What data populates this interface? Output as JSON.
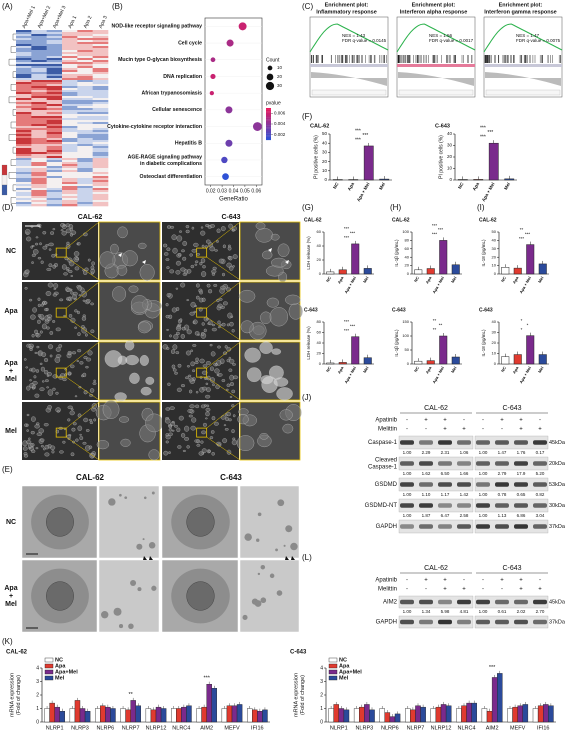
{
  "panels": {
    "bar_colors": [
      "#ffffff",
      "#e03a2f",
      "#7a2a8c",
      "#2b4a9b"
    ],
    "A": {
      "label": "(A)",
      "columns": [
        "Apa+Mel 1",
        "Apa+Mel 2",
        "Apa+Mel 3",
        "Apa 1",
        "Apa 2",
        "Apa 3"
      ]
    },
    "B": {
      "label": "(B)",
      "type": "dot",
      "categories": [
        "NOD-like receptor signaling pathway",
        "Cell cycle",
        "Mucin type O-glycan biosynthesis",
        "DNA replication",
        "African trypanosomiasis",
        "Cellular senescence",
        "Cytokine-cytokine receptor interaction",
        "Hepatitis B",
        "AGE-RAGE signaling pathway",
        "Osteoclast differentiation"
      ],
      "category_notes": [
        null,
        null,
        null,
        null,
        null,
        null,
        null,
        null,
        "in diabetic complications",
        null
      ],
      "values": [
        0.048,
        0.037,
        0.022,
        0.022,
        0.021,
        0.036,
        0.061,
        0.036,
        0.032,
        0.033
      ],
      "counts": [
        28,
        22,
        10,
        12,
        8,
        22,
        35,
        22,
        18,
        20
      ],
      "pvalues": [
        0.006,
        0.005,
        0.005,
        0.006,
        0.006,
        0.004,
        0.004,
        0.003,
        0.002,
        0.001
      ],
      "xlim": [
        0.015,
        0.065
      ],
      "xticks": [
        0.02,
        0.03,
        0.04,
        0.05,
        0.06
      ],
      "xlabel": "GeneRatio",
      "count_title": "Count",
      "count_ticks": [
        10,
        20,
        30
      ],
      "pvalue_title": "pvalue",
      "pvalue_ticks": [
        0.002,
        0.004,
        0.006
      ],
      "pvalue_lim": [
        0.001,
        0.007
      ],
      "pvalue_colors": [
        "#2f52d6",
        "#e8185c"
      ]
    },
    "C": {
      "label": "(C)",
      "plots": [
        {
          "title": [
            "Enrichment plot:",
            "Inflammatory response"
          ],
          "stats": [
            "NES = 1.43",
            "FDR q-value = 0.0145"
          ]
        },
        {
          "title": [
            "Enrichment plot:",
            "Interferon alpha response"
          ],
          "stats": [
            "NES = 1.56",
            "FDR q-value = 0.0017"
          ]
        },
        {
          "title": [
            "Enrichment plot:",
            "Interferon gamma response"
          ],
          "stats": [
            "NES = 1.47",
            "FDR q-value = 0.0075"
          ]
        }
      ]
    },
    "F": {
      "label": "(F)",
      "charts": [
        {
          "type": "bar",
          "title": "CAL-62",
          "ylabel": "PI positive cells (%)",
          "categories": [
            "NC",
            "Apa",
            "Apa + Mel",
            "Mel"
          ],
          "values": [
            0.5,
            0.5,
            37,
            1
          ],
          "ylim": [
            0,
            50
          ],
          "yticks": [
            0,
            10,
            20,
            30,
            40,
            50
          ],
          "annotations": [
            "***",
            "***",
            "***"
          ]
        },
        {
          "type": "bar",
          "title": "C-643",
          "ylabel": "PI positive cells (%)",
          "categories": [
            "NC",
            "Apa",
            "Apa + Mel",
            "Mel"
          ],
          "values": [
            0.5,
            0.5,
            32,
            1
          ],
          "ylim": [
            0,
            40
          ],
          "yticks": [
            0,
            10,
            20,
            30,
            40
          ],
          "annotations": [
            "***",
            "***",
            "***"
          ]
        }
      ]
    },
    "G": {
      "label": "(G)",
      "charts": [
        {
          "type": "bar",
          "title": "CAL-62",
          "ylabel": "LDH release (%)",
          "categories": [
            "NC",
            "Apa",
            "Apa + Mel",
            "Mel"
          ],
          "values": [
            3,
            6,
            43,
            8
          ],
          "ylim": [
            0,
            60
          ],
          "yticks": [
            0,
            20,
            40,
            60
          ],
          "annotations": [
            "***",
            "***",
            "***"
          ]
        },
        {
          "type": "bar",
          "title": "C-643",
          "ylabel": "LDH release (%)",
          "categories": [
            "NC",
            "Apa",
            "Apa + Mel",
            "Mel"
          ],
          "values": [
            2,
            3,
            52,
            12
          ],
          "ylim": [
            0,
            80
          ],
          "yticks": [
            0,
            20,
            40,
            60,
            80
          ],
          "annotations": [
            "***",
            "***",
            "***"
          ]
        }
      ]
    },
    "H": {
      "label": "(H)",
      "charts": [
        {
          "type": "bar",
          "title": "CAL-62",
          "ylabel": "IL-1β (pg/mL)",
          "categories": [
            "NC",
            "Apa",
            "Apa + Mel",
            "Mel"
          ],
          "values": [
            10,
            13,
            80,
            22
          ],
          "ylim": [
            0,
            100
          ],
          "yticks": [
            0,
            20,
            40,
            60,
            80,
            100
          ],
          "annotations": [
            "***",
            "***",
            "***"
          ]
        },
        {
          "type": "bar",
          "title": "C-643",
          "ylabel": "IL-1β (pg/mL)",
          "categories": [
            "NC",
            "Apa",
            "Apa + Mel",
            "Mel"
          ],
          "values": [
            10,
            12,
            100,
            25
          ],
          "ylim": [
            0,
            150
          ],
          "yticks": [
            0,
            50,
            100,
            150
          ],
          "annotations": [
            "**",
            "**",
            "**"
          ]
        }
      ]
    },
    "I": {
      "label": "(I)",
      "charts": [
        {
          "type": "bar",
          "title": "CAL-62",
          "ylabel": "IL-18 (pg/mL)",
          "categories": [
            "NC",
            "Apa",
            "Apa + Mel",
            "Mel"
          ],
          "values": [
            8,
            7,
            35,
            12
          ],
          "ylim": [
            0,
            50
          ],
          "yticks": [
            0,
            10,
            20,
            30,
            40,
            50
          ],
          "annotations": [
            "***",
            "***",
            "**"
          ]
        },
        {
          "type": "bar",
          "title": "C-643",
          "ylabel": "IL-18 (pg/mL)",
          "categories": [
            "NC",
            "Apa",
            "Apa + Mel",
            "Mel"
          ],
          "values": [
            7,
            9,
            27,
            9
          ],
          "ylim": [
            0,
            40
          ],
          "yticks": [
            0,
            10,
            20,
            30,
            40
          ],
          "annotations": [
            "*",
            "*",
            "*"
          ]
        }
      ]
    },
    "D": {
      "label": "(D)",
      "columns": [
        "CAL-62",
        "C-643"
      ],
      "rows": [
        [
          "NC"
        ],
        [
          "Apa"
        ],
        [
          "Apa",
          "+",
          "Mel"
        ],
        [
          "Mel"
        ]
      ]
    },
    "E": {
      "label": "(E)",
      "columns": [
        "CAL-62",
        "C-643"
      ],
      "rows": [
        [
          "NC"
        ],
        [
          "Apa",
          "+",
          "Mel"
        ]
      ]
    },
    "J": {
      "label": "(J)",
      "columns": [
        "CAL-62",
        "C-643"
      ],
      "treatments": [
        {
          "name": "Apatinib",
          "signs": [
            "-",
            "+",
            "+",
            "-",
            "-",
            "+",
            "+",
            "-"
          ]
        },
        {
          "name": "Melittin",
          "signs": [
            "-",
            "-",
            "+",
            "+",
            "-",
            "-",
            "+",
            "+"
          ]
        }
      ],
      "bands": [
        {
          "name": [
            "Caspase-1"
          ],
          "size": "45kDa",
          "quant": [
            "1.00",
            "2.29",
            "2.31",
            "1.06",
            "1.00",
            "1.47",
            "1.76",
            "0.17"
          ]
        },
        {
          "name": [
            "Cleaved",
            "Caspase-1"
          ],
          "size": "20kDa",
          "quant": [
            "1.00",
            "1.62",
            "6.50",
            "1.66",
            "1.00",
            "2.79",
            "17.9",
            "5.20"
          ]
        },
        {
          "name": [
            "GSDMD"
          ],
          "size": "53kDa",
          "quant": [
            "1.00",
            "1.10",
            "1.17",
            "1.42",
            "1.00",
            "0.78",
            "0.65",
            "0.82"
          ]
        },
        {
          "name": [
            "GSDMD-NT"
          ],
          "size": "30kDa",
          "quant": [
            "1.00",
            "1.87",
            "6.47",
            "2.58",
            "1.00",
            "1.13",
            "6.86",
            "3.04"
          ]
        },
        {
          "name": [
            "GAPDH"
          ],
          "size": "37kDa",
          "quant": null
        }
      ]
    },
    "L": {
      "label": "(L)",
      "columns": [
        "CAL-62",
        "C-643"
      ],
      "treatments": [
        {
          "name": "Apatinib",
          "signs": [
            "-",
            "+",
            "+",
            "-",
            "-",
            "+",
            "+",
            "-"
          ]
        },
        {
          "name": "Melittin",
          "signs": [
            "-",
            "-",
            "+",
            "+",
            "-",
            "-",
            "+",
            "+"
          ]
        }
      ],
      "bands": [
        {
          "name": [
            "AIM2"
          ],
          "size": "45kDa",
          "quant": [
            "1.00",
            "1.34",
            "5.98",
            "4.81",
            "1.00",
            "0.61",
            "2.02",
            "2.70"
          ]
        },
        {
          "name": [
            "GAPDH"
          ],
          "size": "37kDa",
          "quant": null
        }
      ]
    },
    "K": {
      "label": "(K)",
      "charts": [
        {
          "type": "grouped-bar",
          "title": "CAL-62",
          "ylabel": [
            "mRNA expression",
            "(Fold of change)"
          ],
          "categories": [
            "NLRP1",
            "NLRP3",
            "NLRP6",
            "NLRP7",
            "NLRP12",
            "NLRC4",
            "AIM2",
            "MEFV",
            "IFI16"
          ],
          "ylim": [
            0,
            4
          ],
          "yticks": [
            0,
            1,
            2,
            3,
            4
          ],
          "annotations": [
            null,
            null,
            null,
            "**",
            null,
            null,
            "***",
            null,
            null
          ],
          "series": [
            {
              "name": "NC",
              "color": "#ffffff",
              "values": [
                1,
                1,
                1,
                1,
                1,
                1,
                1,
                1,
                1
              ]
            },
            {
              "name": "Apa",
              "color": "#e03a2f",
              "values": [
                1.4,
                1.6,
                1.2,
                0.9,
                0.9,
                1.0,
                1.1,
                1.2,
                0.9
              ]
            },
            {
              "name": "Apa+Mel",
              "color": "#7a2a8c",
              "values": [
                1.1,
                1.0,
                1.1,
                1.6,
                1.1,
                1.1,
                2.8,
                1.2,
                0.8
              ]
            },
            {
              "name": "Mel",
              "color": "#2b4a9b",
              "values": [
                0.8,
                0.8,
                1.0,
                1.2,
                1.0,
                1.2,
                2.5,
                1.3,
                0.9
              ]
            }
          ]
        },
        {
          "type": "grouped-bar",
          "title": "C-643",
          "ylabel": [
            "mRNA expression",
            "(Fold of change)"
          ],
          "categories": [
            "NLRP1",
            "NLRP3",
            "NLRP6",
            "NLRP7",
            "NLRP12",
            "NLRC4",
            "AIM2",
            "MEFV",
            "IFI16"
          ],
          "ylim": [
            0,
            4
          ],
          "yticks": [
            0,
            1,
            2,
            3,
            4
          ],
          "annotations": [
            null,
            null,
            null,
            null,
            null,
            null,
            "***",
            null,
            null
          ],
          "series": [
            {
              "name": "NC",
              "color": "#ffffff",
              "values": [
                1,
                1,
                1,
                1,
                1,
                1,
                1,
                1,
                1
              ]
            },
            {
              "name": "Apa",
              "color": "#e03a2f",
              "values": [
                1.3,
                1.1,
                0.7,
                0.9,
                1.1,
                1.2,
                0.8,
                1.1,
                1.2
              ]
            },
            {
              "name": "Apa+Mel",
              "color": "#7a2a8c",
              "values": [
                1.0,
                1.3,
                0.4,
                1.2,
                1.3,
                1.4,
                3.3,
                1.2,
                1.3
              ]
            },
            {
              "name": "Mel",
              "color": "#2b4a9b",
              "values": [
                0.9,
                0.9,
                0.6,
                1.1,
                1.2,
                1.4,
                3.6,
                1.3,
                1.2
              ]
            }
          ]
        }
      ]
    }
  }
}
